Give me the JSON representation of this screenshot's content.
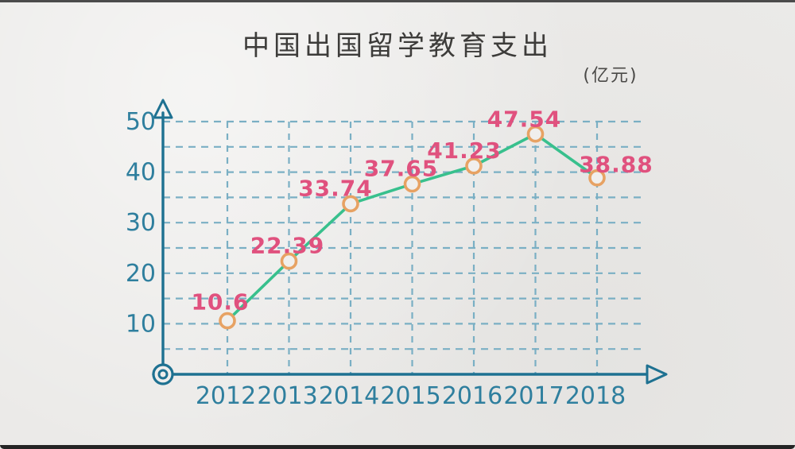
{
  "title": "中国出国留学教育支出",
  "unit_label": "(亿元)",
  "frame": {
    "background": "#ebeae8",
    "top_bar_color": "#4b4b4b",
    "bottom_bar_color": "#242424"
  },
  "chart_data": {
    "type": "line",
    "title": "中国出国留学教育支出",
    "unit": "(亿元)",
    "categories": [
      "2012",
      "2013",
      "2014",
      "2015",
      "2016",
      "2017",
      "2018"
    ],
    "values": [
      10.6,
      22.39,
      33.74,
      37.65,
      41.23,
      47.54,
      38.88
    ],
    "value_labels": [
      "10.6",
      "22.39",
      "33.74",
      "37.65",
      "41.23",
      "47.54",
      "38.88"
    ],
    "series_name": "出国留学教育支出",
    "y_ticks": [
      10,
      20,
      30,
      40,
      50
    ],
    "ylim": [
      0,
      50
    ],
    "grid": "dashed, horizontal every 5 units, vertical at each year",
    "legend": "none",
    "style": "hand-drawn sketch on paper",
    "marker": "hollow circle",
    "axis_color": "#1e7191",
    "tick_label_color": "#2f7f9e",
    "grid_color": "#7aafc4",
    "line_color": "#38c08d",
    "marker_color": "#e7a263",
    "value_label_color": "#e0517e",
    "title_color": "#3d3c3a"
  }
}
